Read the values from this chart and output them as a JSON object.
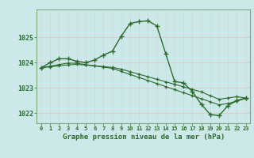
{
  "title": "Graphe pression niveau de la mer (hPa)",
  "bg_color": "#cce8e8",
  "grid_color_h": "#e8c8c8",
  "grid_color_v": "#c8dede",
  "line_color": "#2d6a2d",
  "x_values": [
    0,
    1,
    2,
    3,
    4,
    5,
    6,
    7,
    8,
    9,
    10,
    11,
    12,
    13,
    14,
    15,
    16,
    17,
    18,
    19,
    20,
    21,
    22,
    23
  ],
  "series1": [
    1023.8,
    1024.0,
    1024.15,
    1024.15,
    1024.05,
    1024.0,
    1024.1,
    1024.3,
    1024.45,
    1025.05,
    1025.55,
    1025.62,
    1025.65,
    1025.45,
    1024.35,
    1023.25,
    1023.2,
    1022.85,
    1022.35,
    1021.95,
    1021.9,
    1022.3,
    1022.5,
    1022.6
  ],
  "series2": [
    1023.8,
    1023.86,
    1023.92,
    1023.98,
    1023.97,
    1023.92,
    1023.87,
    1023.82,
    1023.77,
    1023.65,
    1023.53,
    1023.41,
    1023.29,
    1023.17,
    1023.05,
    1022.93,
    1022.81,
    1022.69,
    1022.57,
    1022.45,
    1022.33,
    1022.38,
    1022.48,
    1022.58
  ],
  "series3": [
    1023.8,
    1023.83,
    1023.87,
    1023.91,
    1023.93,
    1023.9,
    1023.87,
    1023.84,
    1023.81,
    1023.74,
    1023.64,
    1023.54,
    1023.44,
    1023.34,
    1023.24,
    1023.14,
    1023.04,
    1022.94,
    1022.84,
    1022.69,
    1022.55,
    1022.6,
    1022.65,
    1022.6
  ],
  "ylim": [
    1021.6,
    1026.1
  ],
  "yticks": [
    1022,
    1023,
    1024,
    1025
  ],
  "xlim": [
    -0.5,
    23.5
  ],
  "spine_color": "#7aaa7a",
  "tick_color": "#2d6a2d"
}
